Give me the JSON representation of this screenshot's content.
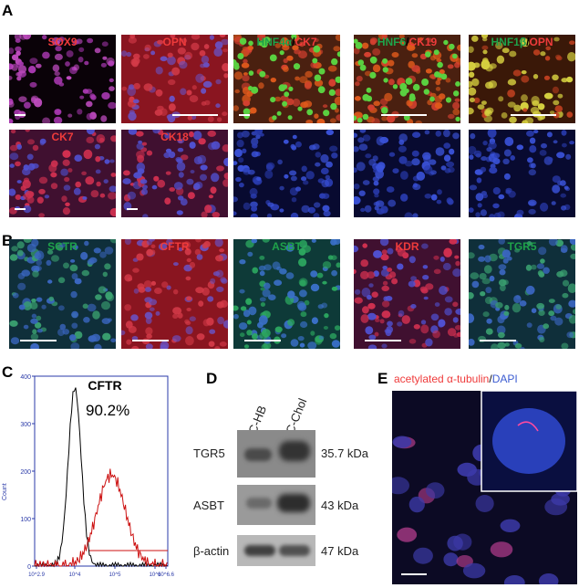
{
  "panels": {
    "A": "A",
    "B": "B",
    "C": "C",
    "D": "D",
    "E": "E"
  },
  "panel_a": {
    "row1": [
      {
        "parts": [
          {
            "text": "SOX9",
            "color": "red"
          }
        ]
      },
      {
        "parts": [
          {
            "text": "OPN",
            "color": "red"
          }
        ]
      },
      {
        "parts": [
          {
            "text": "HNF4α",
            "color": "green"
          },
          {
            "text": "/",
            "color": "black"
          },
          {
            "text": "CK7",
            "color": "red"
          }
        ]
      },
      {
        "parts": [
          {
            "text": "HNF6",
            "color": "green"
          },
          {
            "text": "/",
            "color": "black"
          },
          {
            "text": "CK19",
            "color": "red"
          }
        ]
      },
      {
        "parts": [
          {
            "text": "HNF1β",
            "color": "green"
          },
          {
            "text": "/",
            "color": "black"
          },
          {
            "text": "OPN",
            "color": "red"
          }
        ]
      }
    ],
    "row2": [
      {
        "parts": [
          {
            "text": "CK7",
            "color": "red"
          }
        ]
      },
      {
        "parts": [
          {
            "text": "CK18",
            "color": "red"
          }
        ]
      }
    ]
  },
  "panel_b": [
    {
      "text": "SCTR",
      "color": "green"
    },
    {
      "text": "CFTR",
      "color": "red"
    },
    {
      "text": "ASBT",
      "color": "green"
    },
    {
      "text": "KDR",
      "color": "red"
    },
    {
      "text": "TGR5",
      "color": "green"
    }
  ],
  "panel_c": {
    "title": "CFTR",
    "percent": "90.2%",
    "ylabel": "Count",
    "yticks": [
      "0",
      "100",
      "200",
      "300",
      "400"
    ],
    "xticks": [
      "10^2.9",
      "10^4",
      "10^5",
      "10^6",
      "10^6.6"
    ]
  },
  "panel_d": {
    "lanes": [
      "hESC-HB",
      "hESC-Chol"
    ],
    "rows": [
      {
        "label": "TGR5",
        "kda": "35.7 kDa"
      },
      {
        "label": "ASBT",
        "kda": "43 kDa"
      },
      {
        "label": "β-actin",
        "kda": "47 kDa"
      }
    ]
  },
  "panel_e": {
    "title_red": "acetylated α-tubulin",
    "title_sep": "/",
    "title_blue": "DAPI"
  },
  "colors": {
    "red_label": "#ef3b3b",
    "green_label": "#1fa24a",
    "blue_label": "#3b5bd1",
    "flow_red": "#cc1111",
    "flow_axis": "#2a3aa8"
  }
}
